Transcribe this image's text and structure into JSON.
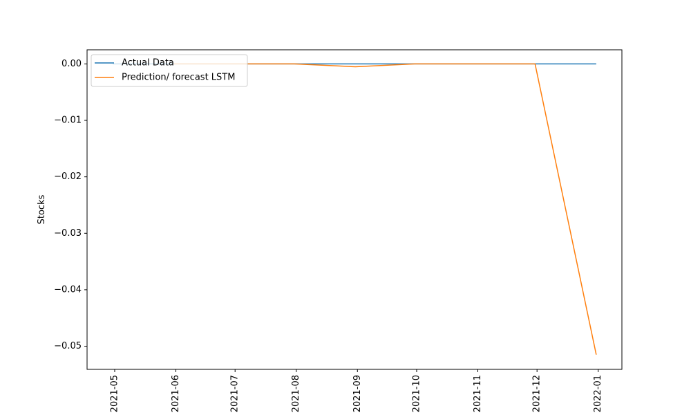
{
  "chart_data": {
    "type": "line",
    "title": "",
    "xlabel": "",
    "ylabel": "Stocks",
    "x_tick_labels": [
      "2021-05",
      "2021-06",
      "2021-07",
      "2021-08",
      "2021-09",
      "2021-10",
      "2021-11",
      "2021-12",
      "2022-01"
    ],
    "y_tick_labels": [
      "0.00",
      "−0.01",
      "−0.02",
      "−0.03",
      "−0.04",
      "−0.05"
    ],
    "y_ticks": [
      0.0,
      -0.01,
      -0.02,
      -0.03,
      -0.04,
      -0.05
    ],
    "xlim": [
      "2021-04-17",
      "2022-01-13"
    ],
    "ylim": [
      -0.0541,
      0.0025
    ],
    "grid": false,
    "legend_position": "top-left",
    "series": [
      {
        "name": "Actual Data",
        "color": "#1f77b4",
        "x": [
          "2021-04-30",
          "2021-05-31",
          "2021-06-30",
          "2021-07-31",
          "2021-08-31",
          "2021-09-30",
          "2021-10-31",
          "2021-11-30",
          "2021-12-31"
        ],
        "y": [
          0.0,
          0.0,
          0.0,
          0.0,
          0.0,
          0.0,
          0.0,
          0.0,
          0.0
        ]
      },
      {
        "name": "Prediction/ forecast LSTM",
        "color": "#ff7f0e",
        "x": [
          "2021-05-31",
          "2021-06-30",
          "2021-07-31",
          "2021-08-31",
          "2021-09-30",
          "2021-10-31",
          "2021-11-30",
          "2021-12-31"
        ],
        "y": [
          0.0,
          0.0,
          0.0,
          -0.0005,
          0.0,
          0.0,
          0.0,
          -0.0515
        ]
      }
    ]
  }
}
